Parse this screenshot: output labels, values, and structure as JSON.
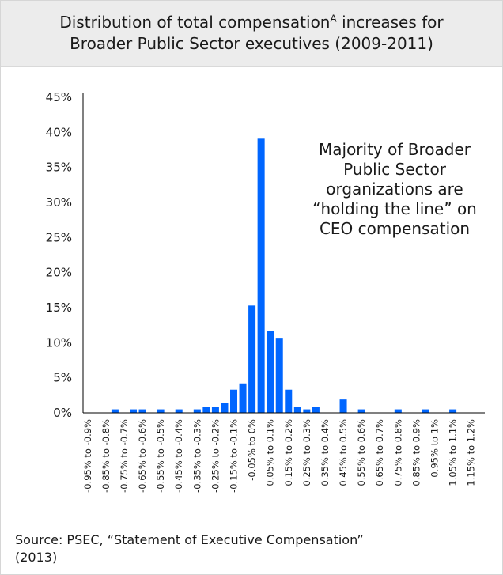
{
  "title_line1": "Distribution of total compensation",
  "title_sup": "A",
  "title_line1_tail": "increases for",
  "title_line2": "Broader Public Sector executives (2009-2011)",
  "callout": [
    "Majority of Broader",
    "Public Sector",
    "organizations are",
    "“holding the line” on",
    "CEO compensation"
  ],
  "source_line1": "Source: PSEC, “Statement of Executive Compensation”",
  "source_line2": "(2013)",
  "colors": {
    "bar": "#0066ff",
    "axis": "#000000",
    "header_bg": "#ececec"
  },
  "chart_data": {
    "type": "bar",
    "ylim": [
      0,
      45
    ],
    "yticks": [
      "0%",
      "5%",
      "10%",
      "15%",
      "20%",
      "25%",
      "30%",
      "35%",
      "40%",
      "45%"
    ],
    "grid": false,
    "categories": [
      "-0.95% to -0.9%",
      "",
      "-0.85% to -0.8%",
      "",
      "-0.75% to -0.7%",
      "",
      "-0.65% to -0.6%",
      "",
      "-0.55% to -0.5%",
      "",
      "-0.45% to -0.4%",
      "",
      "-0.35% to -0.3%",
      "",
      "-0.25% to -0.2%",
      "",
      "-0.15% to -0.1%",
      "",
      "-0.05% to 0%",
      "",
      "0.05% to 0.1%",
      "",
      "0.15% to 0.2%",
      "",
      "0.25% to 0.3%",
      "",
      "0.35% to 0.4%",
      "",
      "0.45% to 0.5%",
      "",
      "0.55% to 0.6%",
      "",
      "0.65% to 0.7%",
      "",
      "0.75% to 0.8%",
      "",
      "0.85% to 0.9%",
      "",
      "0.95% to 1%",
      "",
      "1.05% to 1.1%",
      "",
      "1.15% to 1.2%",
      ""
    ],
    "values": [
      0,
      0,
      0,
      0.5,
      0,
      0.5,
      0.5,
      0,
      0.5,
      0,
      0.5,
      0,
      0.5,
      0.9,
      0.9,
      1.4,
      3.3,
      4.2,
      15.3,
      39.1,
      11.7,
      10.7,
      3.3,
      0.9,
      0.5,
      0.9,
      0,
      0,
      1.9,
      0,
      0.5,
      0,
      0,
      0,
      0.5,
      0,
      0,
      0.5,
      0,
      0,
      0.5,
      0,
      0,
      0
    ]
  }
}
